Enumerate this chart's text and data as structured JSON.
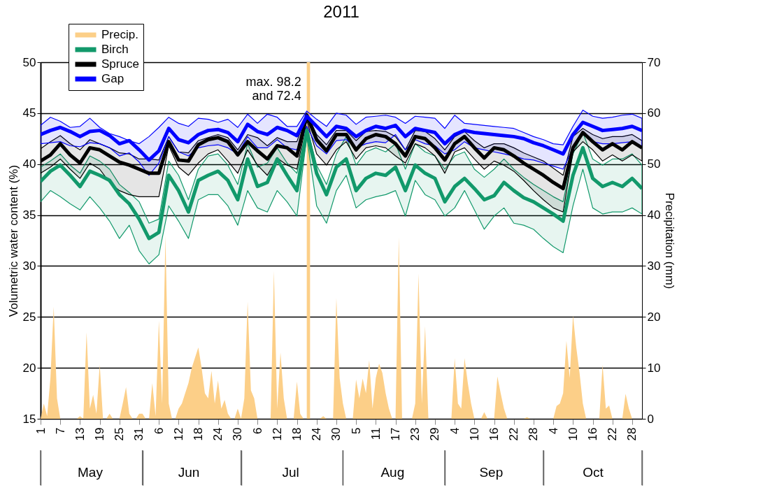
{
  "chart_data": {
    "type": "line",
    "title": "2011",
    "ylabel": "Volumetric water content (%)",
    "y2label": "Precipitation (mm)",
    "xlim": [
      "2011-05-01",
      "2011-10-31"
    ],
    "x2lim": [
      "2011-05-01",
      "2011-10-31"
    ],
    "xticks": [
      {
        "value": "2011-05-01",
        "label": "1"
      },
      {
        "value": "2011-05-07",
        "label": "7"
      },
      {
        "value": "2011-05-13",
        "label": "13"
      },
      {
        "value": "2011-05-19",
        "label": "19"
      },
      {
        "value": "2011-05-25",
        "label": "25"
      },
      {
        "value": "2011-05-31",
        "label": "31"
      },
      {
        "value": "2011-06-06",
        "label": "6"
      },
      {
        "value": "2011-06-12",
        "label": "12"
      },
      {
        "value": "2011-06-18",
        "label": "18"
      },
      {
        "value": "2011-06-24",
        "label": "24"
      },
      {
        "value": "2011-06-30",
        "label": "30"
      },
      {
        "value": "2011-07-06",
        "label": "6"
      },
      {
        "value": "2011-07-12",
        "label": "12"
      },
      {
        "value": "2011-07-18",
        "label": "18"
      },
      {
        "value": "2011-07-24",
        "label": "24"
      },
      {
        "value": "2011-07-30",
        "label": "30"
      },
      {
        "value": "2011-08-05",
        "label": "5"
      },
      {
        "value": "2011-08-11",
        "label": "11"
      },
      {
        "value": "2011-08-17",
        "label": "17"
      },
      {
        "value": "2011-08-23",
        "label": "23"
      },
      {
        "value": "2011-08-29",
        "label": "29"
      },
      {
        "value": "2011-09-04",
        "label": "4"
      },
      {
        "value": "2011-09-10",
        "label": "10"
      },
      {
        "value": "2011-09-16",
        "label": "16"
      },
      {
        "value": "2011-09-22",
        "label": "22"
      },
      {
        "value": "2011-09-28",
        "label": "28"
      },
      {
        "value": "2011-10-04",
        "label": "4"
      },
      {
        "value": "2011-10-10",
        "label": "10"
      },
      {
        "value": "2011-10-16",
        "label": "16"
      },
      {
        "value": "2011-10-22",
        "label": "22"
      },
      {
        "value": "2011-10-28",
        "label": "28"
      }
    ],
    "x2ticks": [
      {
        "value": "2011-05-16",
        "label": "May"
      },
      {
        "value": "2011-06-15",
        "label": "Jun"
      },
      {
        "value": "2011-07-16",
        "label": "Jul"
      },
      {
        "value": "2011-08-16",
        "label": "Aug"
      },
      {
        "value": "2011-09-15",
        "label": "Sep"
      },
      {
        "value": "2011-10-16",
        "label": "Oct"
      }
    ],
    "bands": [
      {
        "axis": "x",
        "from": "2011-07-21",
        "to": "2011-07-22",
        "color": "#fccf88"
      }
    ],
    "ylim": [
      15,
      50
    ],
    "yticks": [
      15,
      20,
      25,
      30,
      35,
      40,
      45,
      50
    ],
    "y2lim": [
      0,
      70
    ],
    "y2ticks": [
      0,
      10,
      20,
      30,
      40,
      50,
      60,
      70
    ],
    "grid": "y",
    "legend": "top left",
    "x": [
      "2011-05-01",
      "2011-05-04",
      "2011-05-07",
      "2011-05-10",
      "2011-05-13",
      "2011-05-16",
      "2011-05-19",
      "2011-05-22",
      "2011-05-25",
      "2011-05-28",
      "2011-05-31",
      "2011-06-03",
      "2011-06-06",
      "2011-06-09",
      "2011-06-12",
      "2011-06-15",
      "2011-06-18",
      "2011-06-21",
      "2011-06-24",
      "2011-06-27",
      "2011-06-30",
      "2011-07-03",
      "2011-07-06",
      "2011-07-09",
      "2011-07-12",
      "2011-07-15",
      "2011-07-18",
      "2011-07-21",
      "2011-07-24",
      "2011-07-27",
      "2011-07-30",
      "2011-08-02",
      "2011-08-05",
      "2011-08-08",
      "2011-08-11",
      "2011-08-14",
      "2011-08-17",
      "2011-08-20",
      "2011-08-23",
      "2011-08-26",
      "2011-08-29",
      "2011-09-01",
      "2011-09-04",
      "2011-09-07",
      "2011-09-10",
      "2011-09-13",
      "2011-09-16",
      "2011-09-19",
      "2011-09-22",
      "2011-09-25",
      "2011-09-28",
      "2011-10-01",
      "2011-10-04",
      "2011-10-07",
      "2011-10-10",
      "2011-10-13",
      "2011-10-16",
      "2011-10-19",
      "2011-10-22",
      "2011-10-25",
      "2011-10-28",
      "2011-10-31"
    ],
    "series": [
      {
        "name": "Precip.",
        "type": "area",
        "axis": "y2",
        "color": "#fccf88",
        "x": [
          "2011-05-01",
          "2011-05-02",
          "2011-05-03",
          "2011-05-04",
          "2011-05-05",
          "2011-05-06",
          "2011-05-07",
          "2011-05-12",
          "2011-05-13",
          "2011-05-14",
          "2011-05-15",
          "2011-05-16",
          "2011-05-17",
          "2011-05-18",
          "2011-05-19",
          "2011-05-20",
          "2011-05-21",
          "2011-05-22",
          "2011-05-23",
          "2011-05-25",
          "2011-05-26",
          "2011-05-27",
          "2011-05-28",
          "2011-05-29",
          "2011-05-30",
          "2011-05-31",
          "2011-06-01",
          "2011-06-02",
          "2011-06-03",
          "2011-06-04",
          "2011-06-05",
          "2011-06-06",
          "2011-06-07",
          "2011-06-08",
          "2011-06-09",
          "2011-06-10",
          "2011-06-11",
          "2011-06-12",
          "2011-06-13",
          "2011-06-14",
          "2011-06-15",
          "2011-06-16",
          "2011-06-17",
          "2011-06-18",
          "2011-06-19",
          "2011-06-20",
          "2011-06-21",
          "2011-06-22",
          "2011-06-23",
          "2011-06-24",
          "2011-06-25",
          "2011-06-26",
          "2011-06-27",
          "2011-06-28",
          "2011-06-29",
          "2011-06-30",
          "2011-07-01",
          "2011-07-02",
          "2011-07-03",
          "2011-07-04",
          "2011-07-05",
          "2011-07-06",
          "2011-07-10",
          "2011-07-11",
          "2011-07-12",
          "2011-07-13",
          "2011-07-14",
          "2011-07-15",
          "2011-07-17",
          "2011-07-18",
          "2011-07-19",
          "2011-07-20",
          "2011-07-21",
          "2011-07-22",
          "2011-07-23",
          "2011-07-25",
          "2011-07-26",
          "2011-07-27",
          "2011-07-29",
          "2011-07-30",
          "2011-07-31",
          "2011-08-01",
          "2011-08-02",
          "2011-08-04",
          "2011-08-05",
          "2011-08-06",
          "2011-08-07",
          "2011-08-08",
          "2011-08-09",
          "2011-08-10",
          "2011-08-11",
          "2011-08-12",
          "2011-08-13",
          "2011-08-14",
          "2011-08-15",
          "2011-08-16",
          "2011-08-17",
          "2011-08-18",
          "2011-08-19",
          "2011-08-22",
          "2011-08-23",
          "2011-08-24",
          "2011-08-25",
          "2011-08-26",
          "2011-08-27",
          "2011-09-03",
          "2011-09-04",
          "2011-09-05",
          "2011-09-06",
          "2011-09-07",
          "2011-09-08",
          "2011-09-09",
          "2011-09-10",
          "2011-09-12",
          "2011-09-13",
          "2011-09-14",
          "2011-09-16",
          "2011-09-17",
          "2011-09-18",
          "2011-09-19",
          "2011-09-20",
          "2011-09-25",
          "2011-09-26",
          "2011-09-27",
          "2011-10-04",
          "2011-10-05",
          "2011-10-06",
          "2011-10-07",
          "2011-10-08",
          "2011-10-09",
          "2011-10-10",
          "2011-10-11",
          "2011-10-12",
          "2011-10-13",
          "2011-10-14",
          "2011-10-18",
          "2011-10-19",
          "2011-10-20",
          "2011-10-21",
          "2011-10-22",
          "2011-10-25",
          "2011-10-26",
          "2011-10-27",
          "2011-10-28",
          "2011-10-31"
        ],
        "values": [
          0,
          3,
          0.5,
          8,
          22,
          4,
          0,
          0,
          0.5,
          0,
          17,
          2,
          4.7,
          1,
          10.6,
          0,
          0,
          1,
          0,
          0,
          3,
          6.2,
          1,
          0,
          0,
          1,
          1,
          0,
          0,
          7,
          0.5,
          19.3,
          3,
          36,
          3,
          0,
          0,
          2,
          3,
          5,
          7,
          10,
          12,
          14,
          10,
          5,
          4,
          9.4,
          3,
          7.5,
          2,
          3.7,
          1,
          0,
          0,
          2,
          0,
          4,
          23,
          5.6,
          4,
          0,
          0,
          29,
          2,
          13,
          4,
          0,
          0,
          7.3,
          1,
          0,
          null,
          null,
          0,
          0,
          0.5,
          0,
          0,
          23.7,
          8,
          3,
          0,
          0,
          7.7,
          4,
          7.9,
          5,
          11.5,
          2,
          8,
          10.8,
          9,
          5,
          2,
          0,
          0,
          35.7,
          0,
          0,
          3,
          28.5,
          3,
          18.2,
          0,
          0,
          11.9,
          3,
          2,
          11.9,
          7,
          3,
          0,
          0,
          1.3,
          0,
          0,
          8.3,
          5,
          2,
          0,
          0,
          0.3,
          0,
          0,
          2.5,
          3,
          5,
          15.3,
          8,
          20.3,
          14,
          9,
          3,
          0,
          0,
          10.6,
          2,
          2.6,
          0,
          0,
          4.9,
          2,
          0,
          0
        ]
      },
      {
        "name": "Birch",
        "color": "#12996b",
        "values": [
          38.3,
          39.3,
          39.9,
          38.9,
          37.8,
          39.3,
          38.9,
          38.4,
          37.0,
          36.1,
          34.6,
          32.7,
          33.3,
          38.9,
          37.4,
          35.3,
          38.4,
          38.9,
          39.3,
          38.4,
          36.5,
          40.5,
          37.8,
          38.2,
          40.5,
          38.9,
          37.4,
          43.3,
          39.1,
          37.0,
          39.7,
          40.5,
          37.4,
          38.6,
          39.1,
          38.9,
          39.7,
          37.4,
          39.9,
          39.1,
          38.6,
          36.3,
          37.8,
          38.6,
          37.6,
          36.5,
          36.9,
          38.2,
          37.4,
          36.7,
          36.3,
          35.7,
          35.1,
          34.4,
          38.9,
          41.6,
          38.6,
          37.8,
          38.2,
          37.8,
          38.6,
          37.6
        ],
        "upper": [
          39.7,
          40.3,
          41.0,
          39.9,
          39.1,
          40.8,
          40.3,
          39.5,
          38.0,
          37.2,
          36.3,
          34.2,
          34.6,
          40.3,
          38.9,
          36.5,
          39.5,
          40.8,
          41.0,
          39.9,
          38.0,
          42.0,
          39.7,
          40.1,
          41.6,
          40.1,
          39.1,
          43.7,
          39.9,
          38.0,
          41.0,
          42.7,
          39.9,
          41.2,
          41.6,
          41.2,
          42.0,
          39.5,
          42.0,
          41.2,
          40.8,
          39.5,
          40.8,
          41.2,
          39.5,
          38.7,
          39.5,
          40.5,
          39.5,
          38.7,
          38.0,
          37.4,
          36.8,
          36.3,
          41.0,
          43.1,
          40.5,
          39.9,
          40.5,
          40.5,
          41.0,
          39.9
        ],
        "lower": [
          36.3,
          37.4,
          36.8,
          36.1,
          35.5,
          36.8,
          35.7,
          34.4,
          32.7,
          34.0,
          31.5,
          30.2,
          31.1,
          35.9,
          34.4,
          32.7,
          36.5,
          37.0,
          37.0,
          35.9,
          34.0,
          37.4,
          35.7,
          35.3,
          37.4,
          36.3,
          34.9,
          42.7,
          35.9,
          34.2,
          37.4,
          38.9,
          35.7,
          36.5,
          36.8,
          37.0,
          37.4,
          34.9,
          38.4,
          37.0,
          36.5,
          34.9,
          35.7,
          37.4,
          35.5,
          33.6,
          34.9,
          35.7,
          34.2,
          34.0,
          33.6,
          32.7,
          31.9,
          31.3,
          35.9,
          39.5,
          35.7,
          35.1,
          35.3,
          35.3,
          35.7,
          35.1
        ]
      },
      {
        "name": "Spruce",
        "color": "#000000",
        "values": [
          40.3,
          40.9,
          42.0,
          40.9,
          40.1,
          41.6,
          41.4,
          40.8,
          40.2,
          39.9,
          39.5,
          39.1,
          39.1,
          42.2,
          40.4,
          40.3,
          41.9,
          42.4,
          42.6,
          42.2,
          40.9,
          42.2,
          41.3,
          40.5,
          41.8,
          41.6,
          40.8,
          44.8,
          42.4,
          41.3,
          42.9,
          42.9,
          41.4,
          42.5,
          42.9,
          42.7,
          42.0,
          40.8,
          42.7,
          42.5,
          41.6,
          40.4,
          42.0,
          42.7,
          41.6,
          40.6,
          41.6,
          41.4,
          40.8,
          40.1,
          39.5,
          38.9,
          38.2,
          37.6,
          41.6,
          43.1,
          42.2,
          41.4,
          42.0,
          41.4,
          42.2,
          41.6
        ],
        "upper": [
          41.5,
          42.2,
          42.8,
          42.0,
          41.4,
          42.4,
          42.0,
          41.6,
          41.1,
          41.0,
          40.5,
          40.5,
          40.4,
          42.7,
          41.2,
          41.1,
          42.3,
          42.6,
          42.9,
          42.6,
          41.4,
          42.9,
          42.6,
          41.8,
          42.6,
          42.2,
          42.2,
          45.0,
          42.9,
          41.9,
          43.3,
          43.3,
          42.3,
          43.2,
          43.3,
          43.2,
          42.7,
          41.4,
          43.3,
          43.2,
          42.5,
          41.4,
          42.7,
          43.2,
          42.3,
          41.6,
          42.0,
          42.0,
          41.6,
          41.1,
          40.7,
          40.3,
          39.6,
          38.9,
          42.7,
          43.5,
          42.9,
          42.5,
          42.7,
          42.7,
          42.9,
          42.3
        ],
        "lower": [
          39.1,
          39.7,
          40.5,
          39.5,
          38.6,
          40.1,
          39.5,
          38.2,
          37.4,
          37.0,
          36.8,
          36.8,
          36.8,
          41.8,
          39.7,
          38.9,
          40.1,
          41.0,
          41.4,
          40.3,
          39.1,
          41.4,
          39.9,
          38.9,
          40.6,
          39.9,
          39.5,
          44.3,
          41.0,
          39.9,
          41.4,
          42.2,
          40.5,
          41.6,
          41.8,
          41.6,
          40.8,
          40.1,
          42.0,
          41.6,
          40.8,
          39.1,
          41.2,
          41.6,
          40.5,
          39.5,
          40.3,
          39.9,
          39.3,
          38.4,
          37.4,
          36.5,
          35.7,
          35.3,
          41.2,
          42.2,
          41.4,
          40.3,
          40.9,
          40.3,
          40.9,
          40.3
        ]
      },
      {
        "name": "Gap",
        "color": "#0000ff",
        "values": [
          42.9,
          43.3,
          43.6,
          43.2,
          42.7,
          43.2,
          43.3,
          42.8,
          42.0,
          42.3,
          41.4,
          40.4,
          41.3,
          43.5,
          42.4,
          42.1,
          42.9,
          43.3,
          43.4,
          43.1,
          42.2,
          43.9,
          43.2,
          42.9,
          43.6,
          43.3,
          42.8,
          44.7,
          43.7,
          42.7,
          43.7,
          43.5,
          42.7,
          43.3,
          43.7,
          43.5,
          43.8,
          42.7,
          43.5,
          43.3,
          43.1,
          42.0,
          42.9,
          43.3,
          43.1,
          43.0,
          42.9,
          42.8,
          42.7,
          42.5,
          42.1,
          41.8,
          41.4,
          41.0,
          42.9,
          44.1,
          43.7,
          43.3,
          43.4,
          43.5,
          43.7,
          43.3
        ],
        "upper": [
          43.8,
          44.6,
          44.2,
          43.6,
          43.7,
          44.5,
          43.6,
          43.0,
          42.7,
          42.3,
          42.0,
          42.7,
          43.6,
          44.6,
          44.0,
          43.7,
          44.5,
          44.4,
          44.1,
          44.4,
          43.6,
          44.9,
          44.0,
          44.9,
          44.6,
          43.7,
          43.7,
          45.2,
          44.4,
          43.7,
          45.0,
          44.8,
          43.9,
          44.6,
          44.7,
          44.8,
          44.6,
          44.0,
          44.7,
          44.6,
          44.5,
          43.5,
          44.8,
          44.0,
          43.9,
          43.8,
          43.7,
          43.6,
          43.5,
          43.1,
          42.7,
          42.4,
          42.0,
          41.9,
          43.7,
          45.3,
          44.7,
          44.5,
          44.6,
          44.8,
          44.9,
          44.5
        ],
        "lower": [
          42.0,
          42.1,
          42.2,
          41.8,
          41.7,
          42.1,
          42.0,
          41.6,
          40.8,
          41.1,
          40.2,
          38.9,
          40.1,
          42.7,
          41.2,
          40.8,
          41.6,
          41.8,
          41.9,
          41.6,
          41.0,
          42.7,
          41.6,
          41.6,
          42.4,
          41.6,
          41.4,
          43.7,
          41.8,
          41.0,
          42.3,
          42.4,
          41.6,
          42.0,
          42.2,
          42.1,
          42.9,
          41.4,
          42.4,
          42.0,
          41.8,
          41.0,
          41.4,
          42.2,
          41.6,
          41.4,
          41.2,
          41.0,
          40.8,
          40.5,
          40.4,
          40.1,
          39.8,
          39.5,
          41.6,
          43.1,
          42.2,
          42.0,
          42.0,
          42.1,
          42.2,
          41.6
        ]
      }
    ],
    "annotations": [
      {
        "text": "max. 98.2\nand 72.4",
        "x": "2011-07-21",
        "y": 48
      }
    ]
  }
}
